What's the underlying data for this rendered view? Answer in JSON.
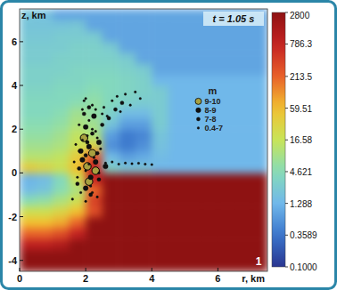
{
  "chart_data": {
    "type": "heatmap",
    "x_label": "r, km",
    "y_label": "z, km",
    "time_label": "t = 1.05 s",
    "panel_label": "1",
    "xlim": [
      0,
      7.5
    ],
    "ylim": [
      -4.5,
      7.5
    ],
    "xticks": [
      0,
      2,
      4,
      6
    ],
    "yticks": [
      -4,
      -2,
      0,
      2,
      4,
      6
    ],
    "grid": false,
    "legend": "right",
    "legend_title": "m",
    "x_bins": [
      0,
      0.5,
      1,
      1.5,
      2,
      2.5,
      3,
      3.5,
      4,
      4.5,
      5,
      5.5,
      6,
      6.5,
      7,
      7.5
    ],
    "y_bins": [
      -4.5,
      -4,
      -3.5,
      -3,
      -2.5,
      -2,
      -1.5,
      -1,
      -0.5,
      0,
      0.5,
      1,
      1.5,
      2,
      2.5,
      3,
      3.5,
      4,
      4.5,
      5,
      5.5,
      6,
      6.5,
      7,
      7.5
    ],
    "cells": [
      [
        2800,
        2800,
        2800,
        2800,
        2800,
        2800,
        2800,
        2800,
        2800,
        2800,
        2800,
        2800,
        2800,
        2800,
        2800
      ],
      [
        2800,
        2800,
        2800,
        2800,
        2800,
        2800,
        2800,
        2800,
        2800,
        2800,
        2800,
        2800,
        2800,
        2800,
        2800
      ],
      [
        900,
        900,
        1200,
        2800,
        2800,
        2800,
        2800,
        2800,
        2800,
        2800,
        2800,
        2800,
        2800,
        2800,
        2800
      ],
      [
        200,
        200,
        300,
        800,
        2800,
        2800,
        2800,
        2800,
        2800,
        2800,
        2800,
        2800,
        2800,
        2800,
        2800
      ],
      [
        60,
        60,
        80,
        200,
        2800,
        2800,
        2800,
        2800,
        2800,
        2800,
        2800,
        2800,
        2800,
        2800,
        2800
      ],
      [
        20,
        20,
        30,
        60,
        300,
        2800,
        2800,
        2800,
        2800,
        2800,
        2800,
        2800,
        2800,
        2800,
        2800
      ],
      [
        5,
        6,
        10,
        20,
        400,
        2800,
        2800,
        2800,
        2800,
        2800,
        2800,
        2800,
        2800,
        2800,
        2800
      ],
      [
        1.5,
        2,
        5,
        10,
        200,
        2800,
        2800,
        2800,
        2800,
        2800,
        2800,
        2800,
        2800,
        2800,
        2800
      ],
      [
        1.2,
        1.5,
        4,
        20,
        800,
        2800,
        2800,
        2800,
        2800,
        2800,
        2800,
        2800,
        2800,
        2800,
        2800
      ],
      [
        40,
        30,
        20,
        60,
        800,
        3,
        2,
        2,
        1.3,
        1.3,
        1.3,
        1.3,
        1.3,
        1.3,
        1.3
      ],
      [
        12,
        12,
        15,
        40,
        300,
        1.5,
        0.8,
        1,
        1.5,
        1.3,
        1.3,
        1.3,
        1.3,
        1.3,
        1.3
      ],
      [
        8,
        8,
        10,
        20,
        30,
        0.6,
        0.4,
        0.6,
        1.8,
        1.3,
        1.3,
        1.3,
        1.3,
        1.3,
        1.3
      ],
      [
        6,
        6,
        8,
        15,
        10,
        0.8,
        0.4,
        0.5,
        2,
        1.3,
        1.3,
        1.3,
        1.3,
        1.3,
        1.3
      ],
      [
        5,
        5,
        6,
        10,
        8,
        2,
        0.8,
        0.8,
        2.5,
        1.3,
        1.3,
        1.3,
        1.3,
        1.3,
        1.3
      ],
      [
        4,
        4,
        5,
        8,
        6,
        3,
        1.5,
        1.5,
        2.5,
        1.3,
        1.3,
        1.3,
        1.3,
        1.3,
        1.3
      ],
      [
        4,
        4,
        4,
        5,
        6,
        4,
        3,
        2.5,
        2.5,
        1.3,
        1.3,
        1.3,
        1.3,
        1.3,
        1.3
      ],
      [
        3.5,
        3.5,
        4,
        4,
        5,
        4,
        3.5,
        3,
        2.5,
        1.3,
        1.3,
        1.3,
        1.3,
        1.3,
        1.3
      ],
      [
        3,
        3,
        3.5,
        3.5,
        4,
        4,
        3.5,
        3,
        1.3,
        1.3,
        1.3,
        1.3,
        1.3,
        1.3,
        1.3
      ],
      [
        3,
        3,
        3,
        3.5,
        3.5,
        3.5,
        3,
        2.5,
        0.9,
        0.9,
        0.9,
        0.9,
        0.9,
        0.9,
        0.9
      ],
      [
        2.5,
        2.5,
        3,
        3,
        3,
        3,
        2.5,
        0.9,
        0.9,
        0.9,
        0.9,
        0.9,
        0.9,
        0.9,
        0.9
      ],
      [
        2.5,
        2.5,
        2.5,
        3,
        3,
        2.5,
        0.9,
        0.9,
        0.9,
        0.9,
        0.9,
        0.9,
        0.9,
        0.9,
        0.9
      ],
      [
        2.2,
        2.2,
        2.5,
        2.5,
        2.5,
        0.9,
        0.9,
        0.9,
        0.9,
        0.9,
        0.9,
        0.9,
        0.9,
        0.9,
        0.9
      ],
      [
        2,
        2,
        2,
        2.2,
        0.9,
        0.9,
        0.9,
        0.9,
        0.9,
        0.9,
        0.9,
        0.9,
        0.9,
        0.9,
        0.9
      ],
      [
        2,
        1.8,
        0.9,
        0.9,
        0.9,
        0.9,
        0.9,
        0.9,
        0.9,
        0.9,
        0.9,
        0.9,
        0.9,
        0.9,
        0.9
      ]
    ],
    "colorbar": {
      "range": [
        0.1,
        2800
      ],
      "log": true,
      "ticks": [
        2800,
        786.3,
        213.5,
        59.51,
        16.58,
        4.621,
        1.288,
        0.3589,
        {
          "value": 0.1,
          "label": "0.1000"
        }
      ]
    },
    "series": [
      {
        "name": "9-10",
        "type": "scatter",
        "marker": "circle",
        "color": "#a8a040",
        "x": [
          2.05,
          2.2,
          1.95,
          2.3,
          2.1
        ],
        "values": [
          0.3,
          0.9,
          1.6,
          0.1,
          -0.4
        ]
      },
      {
        "name": "8-9",
        "type": "scatter",
        "marker": "circle",
        "color": "#111111",
        "x": [
          1.9,
          2.1,
          2.3,
          2.0,
          2.15,
          1.85,
          2.4,
          2.25,
          2.0,
          2.6
        ],
        "values": [
          0.6,
          1.2,
          0.5,
          2.1,
          -0.2,
          1.0,
          1.4,
          2.6,
          -0.7,
          0.3
        ]
      },
      {
        "name": "7-8",
        "type": "scatter",
        "marker": "circle",
        "color": "#111111",
        "x": [
          1.8,
          2.0,
          2.2,
          2.35,
          1.95,
          2.1,
          2.5,
          2.7,
          1.75,
          2.15,
          2.4,
          2.9,
          3.1,
          2.05
        ],
        "values": [
          0.2,
          0.8,
          1.8,
          0.9,
          2.7,
          3.0,
          2.2,
          2.5,
          -0.5,
          -1.0,
          -0.3,
          2.9,
          3.2,
          1.4
        ]
      },
      {
        "name": "0.4-7",
        "type": "scatter",
        "marker": "circle",
        "color": "#111111",
        "x": [
          1.65,
          1.7,
          1.8,
          1.85,
          1.9,
          1.95,
          2.0,
          2.05,
          2.1,
          2.15,
          2.2,
          2.25,
          2.3,
          2.35,
          2.4,
          2.45,
          2.5,
          1.75,
          1.9,
          2.0,
          2.1,
          2.2,
          2.3,
          2.55,
          2.65,
          2.8,
          2.95,
          3.05,
          3.2,
          3.35,
          3.5,
          3.65,
          2.6,
          2.8,
          3.0,
          3.2,
          3.4,
          3.6,
          3.8,
          4.0,
          1.6,
          1.8,
          2.0,
          2.2,
          2.35
        ],
        "values": [
          0.5,
          1.3,
          2.2,
          -0.9,
          2.9,
          3.3,
          0.1,
          1.7,
          2.4,
          -0.6,
          3.1,
          0.7,
          1.9,
          -1.1,
          0.0,
          1.1,
          2.7,
          -0.2,
          1.5,
          3.4,
          0.4,
          2.0,
          2.9,
          3.0,
          2.6,
          3.3,
          3.5,
          2.8,
          3.6,
          3.1,
          3.7,
          3.4,
          0.45,
          0.5,
          0.4,
          0.45,
          0.42,
          0.44,
          0.4,
          0.38,
          -1.2,
          1.0,
          -1.3,
          -0.9,
          1.6
        ]
      }
    ]
  }
}
